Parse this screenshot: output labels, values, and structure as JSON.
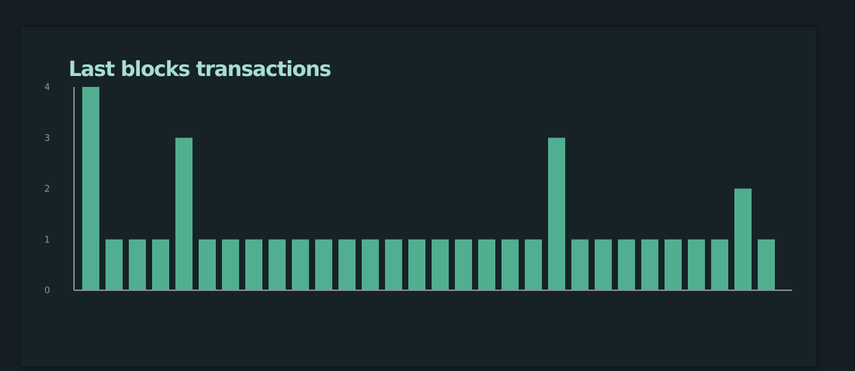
{
  "chart_data": {
    "type": "bar",
    "title": "Last blocks transactions",
    "xlabel": "",
    "ylabel": "",
    "ylim": [
      0,
      4
    ],
    "yticks": [
      0,
      1,
      2,
      3,
      4
    ],
    "grid": false,
    "bar_color": "#52ae91",
    "axis_color": "#8a9296",
    "values": [
      4,
      1,
      1,
      1,
      3,
      1,
      1,
      1,
      1,
      1,
      1,
      1,
      1,
      1,
      1,
      1,
      1,
      1,
      1,
      1,
      3,
      1,
      1,
      1,
      1,
      1,
      1,
      1,
      2,
      1
    ]
  }
}
